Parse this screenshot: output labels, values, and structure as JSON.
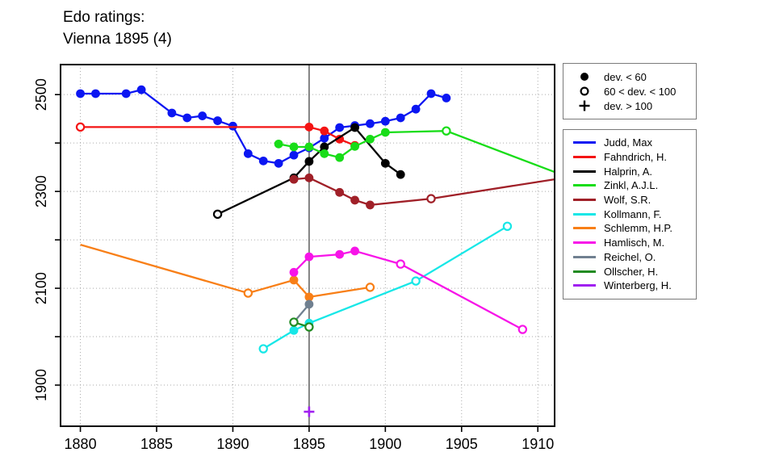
{
  "title": {
    "line1": "Edo ratings:",
    "line2": "Vienna 1895 (4)"
  },
  "marker_legend": {
    "items": [
      {
        "icon": "filled-circle-icon",
        "marker": "filled-circle",
        "label": "dev. < 60"
      },
      {
        "icon": "open-circle-icon",
        "marker": "open-circle",
        "label": "60 < dev. < 100"
      },
      {
        "icon": "plus-icon",
        "marker": "plus",
        "label": "dev. > 100"
      }
    ]
  },
  "chart_data": {
    "type": "line",
    "title": "Edo ratings: Vienna 1895 (4)",
    "xlabel": "",
    "ylabel": "",
    "grid": "dotted",
    "legend_position": "right-outside",
    "xlim": [
      1878.7,
      1911.1
    ],
    "ylim": [
      1815,
      2562
    ],
    "x_ticks": [
      1880,
      1885,
      1890,
      1895,
      1900,
      1905,
      1910
    ],
    "y_ticks": [
      1900,
      2000,
      2100,
      2200,
      2300,
      2400,
      2500
    ],
    "y_labeled_ticks": [
      1900,
      2100,
      2300,
      2500
    ],
    "event_line_x": 1895,
    "event_line_color": "#808080",
    "grid_color": "#aaaaaa",
    "marker_meaning": {
      "f": "dev. < 60",
      "o": "60 < dev. < 100",
      "+": "dev. > 100",
      "n": "no marker (line end)"
    },
    "series": [
      {
        "name": "Judd, Max",
        "color": "#0b16f2",
        "points": [
          [
            1880,
            2502,
            "f"
          ],
          [
            1881,
            2502,
            "f"
          ],
          [
            1883,
            2502,
            "f"
          ],
          [
            1884,
            2510,
            "f"
          ],
          [
            1886,
            2462,
            "f"
          ],
          [
            1887,
            2452,
            "f"
          ],
          [
            1888,
            2456,
            "f"
          ],
          [
            1889,
            2446,
            "f"
          ],
          [
            1890,
            2435,
            "f"
          ],
          [
            1891,
            2378,
            "f"
          ],
          [
            1892,
            2363,
            "f"
          ],
          [
            1893,
            2358,
            "f"
          ],
          [
            1894,
            2375,
            "f"
          ],
          [
            1895,
            2390,
            "f"
          ],
          [
            1896,
            2410,
            "f"
          ],
          [
            1897,
            2432,
            "f"
          ],
          [
            1898,
            2436,
            "f"
          ],
          [
            1899,
            2440,
            "f"
          ],
          [
            1900,
            2445,
            "f"
          ],
          [
            1901,
            2452,
            "f"
          ],
          [
            1902,
            2470,
            "f"
          ],
          [
            1903,
            2502,
            "f"
          ],
          [
            1904,
            2493,
            "f"
          ]
        ]
      },
      {
        "name": "Fahndrich, H.",
        "color": "#f41414",
        "points": [
          [
            1880,
            2433,
            "o"
          ],
          [
            1895,
            2433,
            "f"
          ],
          [
            1896,
            2425,
            "f"
          ],
          [
            1897,
            2408,
            "f"
          ],
          [
            1898,
            2395,
            "f"
          ]
        ]
      },
      {
        "name": "Halprin, A.",
        "color": "#000000",
        "points": [
          [
            1889,
            2253,
            "o"
          ],
          [
            1894,
            2328,
            "f"
          ],
          [
            1895,
            2362,
            "f"
          ],
          [
            1896,
            2392,
            "f"
          ],
          [
            1898,
            2432,
            "f"
          ],
          [
            1900,
            2358,
            "f"
          ],
          [
            1901,
            2335,
            "f"
          ]
        ]
      },
      {
        "name": "Zinkl, A.J.L.",
        "color": "#18dd18",
        "points": [
          [
            1893,
            2398,
            "f"
          ],
          [
            1894,
            2392,
            "f"
          ],
          [
            1895,
            2392,
            "f"
          ],
          [
            1896,
            2378,
            "f"
          ],
          [
            1897,
            2370,
            "f"
          ],
          [
            1898,
            2393,
            "f"
          ],
          [
            1899,
            2408,
            "f"
          ],
          [
            1900,
            2422,
            "f"
          ],
          [
            1904,
            2425,
            "o"
          ],
          [
            1911.1,
            2340,
            "n"
          ]
        ]
      },
      {
        "name": "Wolf, S.R.",
        "color": "#a02028",
        "points": [
          [
            1894,
            2325,
            "f"
          ],
          [
            1895,
            2328,
            "f"
          ],
          [
            1897,
            2298,
            "f"
          ],
          [
            1898,
            2282,
            "f"
          ],
          [
            1899,
            2272,
            "f"
          ],
          [
            1903,
            2285,
            "o"
          ],
          [
            1911.1,
            2325,
            "n"
          ]
        ]
      },
      {
        "name": "Kollmann, F.",
        "color": "#17e7e7",
        "points": [
          [
            1892,
            1975,
            "o"
          ],
          [
            1894,
            2013,
            "f"
          ],
          [
            1895,
            2028,
            "f"
          ],
          [
            1902,
            2115,
            "o"
          ],
          [
            1908,
            2228,
            "o"
          ]
        ]
      },
      {
        "name": "Schlemm, H.P.",
        "color": "#f87f17",
        "points": [
          [
            1880,
            2190,
            "n"
          ],
          [
            1891,
            2090,
            "o"
          ],
          [
            1894,
            2117,
            "f"
          ],
          [
            1895,
            2082,
            "f"
          ],
          [
            1899,
            2102,
            "o"
          ]
        ]
      },
      {
        "name": "Hamlisch, M.",
        "color": "#f714e8",
        "points": [
          [
            1894,
            2133,
            "f"
          ],
          [
            1895,
            2165,
            "f"
          ],
          [
            1897,
            2170,
            "f"
          ],
          [
            1898,
            2177,
            "f"
          ],
          [
            1901,
            2150,
            "o"
          ],
          [
            1909,
            2015,
            "o"
          ]
        ]
      },
      {
        "name": "Reichel, O.",
        "color": "#708090",
        "points": [
          [
            1894,
            2030,
            "f"
          ],
          [
            1895,
            2067,
            "f"
          ]
        ]
      },
      {
        "name": "Ollscher, H.",
        "color": "#228b22",
        "points": [
          [
            1894,
            2030,
            "o"
          ],
          [
            1895,
            2020,
            "o"
          ]
        ]
      },
      {
        "name": "Winterberg, H.",
        "color": "#a020f0",
        "points": [
          [
            1895,
            1845,
            "+"
          ]
        ]
      }
    ]
  }
}
